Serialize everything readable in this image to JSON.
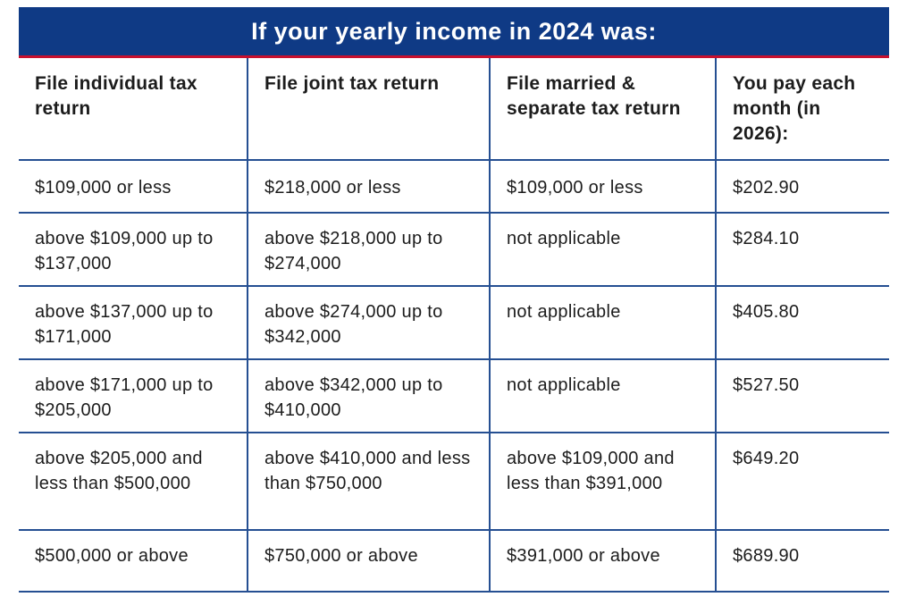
{
  "banner": {
    "title": "If your yearly income in 2024 was:"
  },
  "colors": {
    "banner_bg": "#0f3a85",
    "banner_underline": "#c8102e",
    "rule": "#254f92"
  },
  "table": {
    "headers": [
      "File individual tax return",
      "File joint tax return",
      "File married & separate tax return",
      "You pay each month (in 2026):"
    ],
    "rows": [
      [
        "$109,000 or less",
        "$218,000 or less",
        "$109,000 or less",
        "$202.90"
      ],
      [
        "above $109,000 up to $137,000",
        "above $218,000 up to $274,000",
        "not applicable",
        "$284.10"
      ],
      [
        "above $137,000 up to $171,000",
        "above $274,000 up to $342,000",
        "not applicable",
        "$405.80"
      ],
      [
        "above $171,000 up to $205,000",
        "above $342,000 up to $410,000",
        "not applicable",
        "$527.50"
      ],
      [
        "above $205,000 and less than $500,000",
        "above $410,000 and less than $750,000",
        "above $109,000 and less than $391,000",
        "$649.20"
      ],
      [
        "$500,000 or above",
        "$750,000 or above",
        "$391,000 or above",
        "$689.90"
      ]
    ]
  }
}
